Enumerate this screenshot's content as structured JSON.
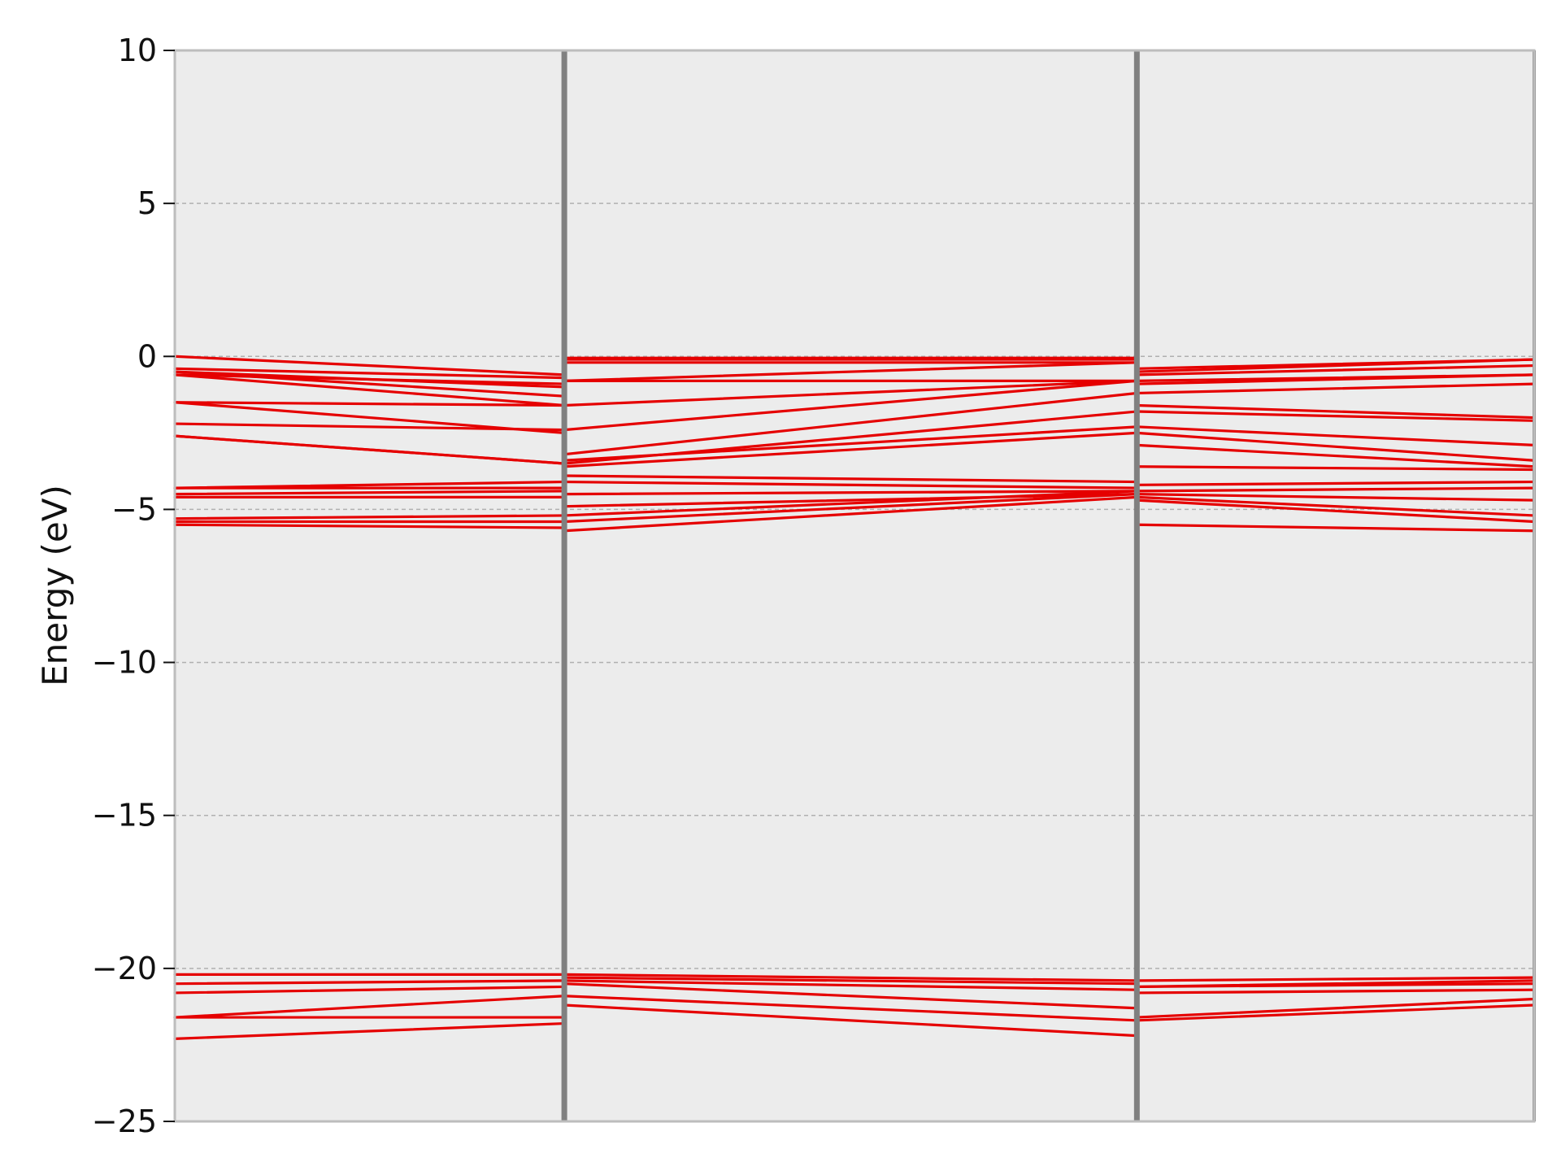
{
  "chart_data": {
    "type": "line",
    "title": "",
    "xlabel": "",
    "ylabel": "Energy (eV)",
    "ylim": [
      -25,
      10
    ],
    "yticks": [
      10,
      5,
      0,
      -5,
      -10,
      -15,
      -20,
      -25
    ],
    "ytick_labels": [
      "10",
      "5",
      "0",
      "−5",
      "−10",
      "−15",
      "−20",
      "−25"
    ],
    "xlim": [
      0,
      3.49
    ],
    "kpoint_boundaries": [
      1.0,
      2.47,
      3.49
    ],
    "grid": "y-dashed",
    "colors": {
      "bands": "#e50000",
      "boundary": "#808080",
      "plot_background": "#ececec",
      "grid": "#b0b0b0",
      "frame": "#bdbdbd"
    },
    "segments": [
      {
        "x": [
          0,
          1.0
        ],
        "bands": [
          [
            -22.3,
            -21.8
          ],
          [
            -21.6,
            -20.9
          ],
          [
            -21.6,
            -21.6
          ],
          [
            -20.8,
            -20.6
          ],
          [
            -20.5,
            -20.4
          ],
          [
            -20.2,
            -20.2
          ],
          [
            -5.5,
            -5.6
          ],
          [
            -5.4,
            -5.4
          ],
          [
            -5.3,
            -5.2
          ],
          [
            -4.6,
            -4.6
          ],
          [
            -4.5,
            -4.4
          ],
          [
            -4.3,
            -4.1
          ],
          [
            -4.3,
            -4.3
          ],
          [
            -2.6,
            -3.5
          ],
          [
            -2.6,
            -3.5
          ],
          [
            -2.2,
            -2.4
          ],
          [
            -1.5,
            -2.5
          ],
          [
            -1.5,
            -1.6
          ],
          [
            -0.6,
            -1.6
          ],
          [
            -0.5,
            -1.3
          ],
          [
            -0.5,
            -1.0
          ],
          [
            -0.6,
            -0.9
          ],
          [
            -0.4,
            -0.7
          ],
          [
            0.0,
            -0.6
          ]
        ]
      },
      {
        "x": [
          1.0,
          2.47
        ],
        "bands": [
          [
            -21.2,
            -22.2
          ],
          [
            -20.9,
            -21.7
          ],
          [
            -20.5,
            -21.3
          ],
          [
            -20.4,
            -20.7
          ],
          [
            -20.3,
            -20.5
          ],
          [
            -20.2,
            -20.4
          ],
          [
            -5.7,
            -4.6
          ],
          [
            -5.4,
            -4.5
          ],
          [
            -5.2,
            -4.4
          ],
          [
            -4.9,
            -4.5
          ],
          [
            -4.5,
            -4.4
          ],
          [
            -4.1,
            -4.3
          ],
          [
            -3.9,
            -4.1
          ],
          [
            -3.6,
            -2.5
          ],
          [
            -3.5,
            -1.8
          ],
          [
            -3.4,
            -2.3
          ],
          [
            -3.2,
            -1.2
          ],
          [
            -2.4,
            -0.8
          ],
          [
            -1.6,
            -0.8
          ],
          [
            -0.8,
            -0.8
          ],
          [
            -0.8,
            -0.2
          ],
          [
            -0.2,
            -0.2
          ],
          [
            -0.1,
            -0.1
          ],
          [
            -0.05,
            -0.05
          ]
        ]
      },
      {
        "x": [
          2.47,
          3.49
        ],
        "bands": [
          [
            -21.7,
            -21.2
          ],
          [
            -21.6,
            -21.0
          ],
          [
            -20.8,
            -20.7
          ],
          [
            -20.6,
            -20.5
          ],
          [
            -20.6,
            -20.4
          ],
          [
            -20.4,
            -20.3
          ],
          [
            -5.5,
            -5.7
          ],
          [
            -4.7,
            -5.4
          ],
          [
            -4.6,
            -5.2
          ],
          [
            -4.5,
            -4.7
          ],
          [
            -4.4,
            -4.3
          ],
          [
            -4.2,
            -4.1
          ],
          [
            -3.6,
            -3.7
          ],
          [
            -2.9,
            -3.6
          ],
          [
            -2.5,
            -3.4
          ],
          [
            -2.3,
            -2.9
          ],
          [
            -1.8,
            -2.1
          ],
          [
            -1.6,
            -2.0
          ],
          [
            -1.2,
            -0.9
          ],
          [
            -0.9,
            -0.6
          ],
          [
            -0.8,
            -0.6
          ],
          [
            -0.6,
            -0.3
          ],
          [
            -0.5,
            -0.1
          ],
          [
            -0.4,
            -0.1
          ]
        ]
      }
    ]
  }
}
